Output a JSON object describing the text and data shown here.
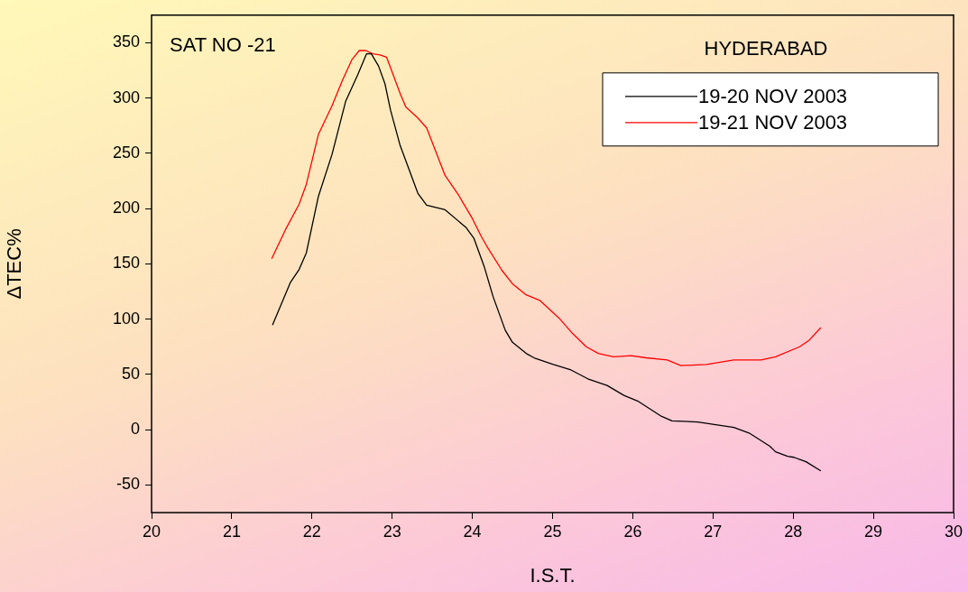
{
  "chart_data": {
    "type": "line",
    "xlabel": "I.S.T.",
    "ylabel": "ΔTEC%",
    "annotations": [
      "SAT NO -21",
      "HYDERABAD"
    ],
    "xlim": [
      20,
      30
    ],
    "xticks": [
      20,
      21,
      22,
      23,
      24,
      25,
      26,
      27,
      28,
      29,
      30
    ],
    "ylim": [
      -75,
      375
    ],
    "yticks": [
      -50,
      0,
      50,
      100,
      150,
      200,
      250,
      300,
      350
    ],
    "grid": false,
    "legend": "top right",
    "marker": "none",
    "line_style": "solid",
    "series": [
      {
        "name": "19-20 NOV 2003",
        "color": "#000000",
        "x": [
          21.51,
          21.73,
          21.84,
          21.93,
          22.08,
          22.25,
          22.42,
          22.57,
          22.68,
          22.74,
          22.83,
          22.91,
          22.98,
          23.1,
          23.32,
          23.43,
          23.66,
          23.92,
          24.02,
          24.15,
          24.26,
          24.41,
          24.5,
          24.67,
          24.77,
          25.01,
          25.23,
          25.44,
          25.68,
          25.89,
          26.06,
          26.36,
          26.49,
          26.81,
          27.26,
          27.45,
          27.71,
          27.78,
          27.93,
          28.01,
          28.16,
          28.34
        ],
        "values": [
          95,
          133,
          145,
          160,
          211,
          249,
          297,
          321,
          340,
          340,
          329,
          313,
          289,
          257,
          214,
          203,
          199,
          183,
          173,
          147,
          120,
          90,
          79,
          69,
          65,
          59,
          54,
          46,
          40,
          31,
          26,
          12,
          8,
          7,
          2,
          -3,
          -15,
          -20,
          -24,
          -25,
          -29,
          -37
        ]
      },
      {
        "name": "19-21 NOV 2003",
        "color": "#ff0000",
        "x": [
          21.5,
          21.67,
          21.84,
          21.93,
          22.08,
          22.25,
          22.38,
          22.5,
          22.59,
          22.67,
          22.76,
          22.85,
          22.93,
          23.1,
          23.17,
          23.32,
          23.43,
          23.66,
          23.83,
          24.0,
          24.11,
          24.18,
          24.37,
          24.5,
          24.67,
          24.84,
          25.08,
          25.25,
          25.42,
          25.57,
          25.76,
          25.98,
          26.17,
          26.43,
          26.6,
          26.92,
          27.26,
          27.6,
          27.78,
          28.08,
          28.2,
          28.34
        ],
        "values": [
          155,
          181,
          204,
          222,
          267,
          293,
          316,
          335,
          343,
          343,
          340,
          339,
          337,
          304,
          292,
          282,
          273,
          230,
          212,
          191,
          175,
          166,
          144,
          132,
          122,
          117,
          101,
          87,
          75,
          69,
          66,
          67,
          65,
          63,
          58,
          59,
          63,
          63,
          66,
          75,
          81,
          92
        ]
      }
    ]
  }
}
